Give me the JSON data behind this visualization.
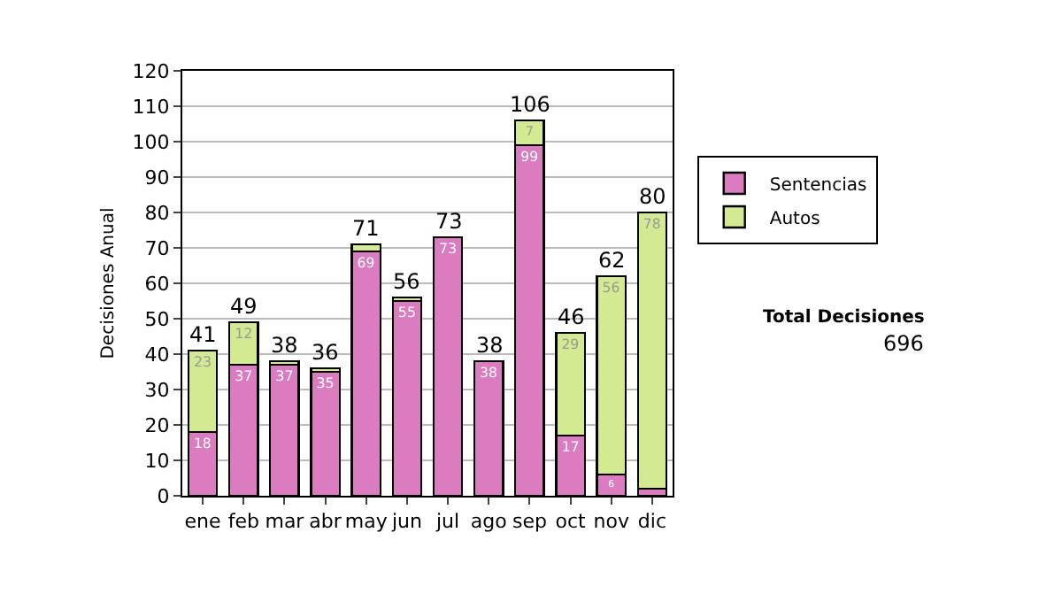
{
  "chart_data": {
    "type": "bar",
    "stacked": true,
    "ylabel": "Decisiones Anual",
    "categories": [
      "ene",
      "feb",
      "mar",
      "abr",
      "may",
      "jun",
      "jul",
      "ago",
      "sep",
      "oct",
      "nov",
      "dic"
    ],
    "series": [
      {
        "name": "Sentencias",
        "color": "#dc7cc0",
        "values": [
          18,
          37,
          37,
          35,
          69,
          55,
          73,
          38,
          99,
          17,
          6,
          2
        ],
        "value_labels": [
          "18",
          "37",
          "37",
          "35",
          "69",
          "55",
          "73",
          "38",
          "99",
          "17",
          "6",
          null
        ]
      },
      {
        "name": "Autos",
        "color": "#d3ea92",
        "values": [
          23,
          12,
          1,
          1,
          2,
          1,
          0,
          0,
          7,
          29,
          56,
          78
        ],
        "value_labels": [
          "23",
          "12",
          null,
          null,
          null,
          null,
          null,
          null,
          "7",
          "29",
          "56",
          "78"
        ]
      }
    ],
    "totals": [
      "41",
      "49",
      "38",
      "36",
      "71",
      "56",
      "73",
      "38",
      "106",
      "46",
      "62",
      "80"
    ],
    "ylim": [
      0,
      120
    ],
    "yticks": [
      0,
      10,
      20,
      30,
      40,
      50,
      60,
      70,
      80,
      90,
      100,
      110,
      120
    ],
    "grid": "y",
    "legend": "right",
    "annotations": [
      "Total Decisiones",
      "696"
    ]
  }
}
